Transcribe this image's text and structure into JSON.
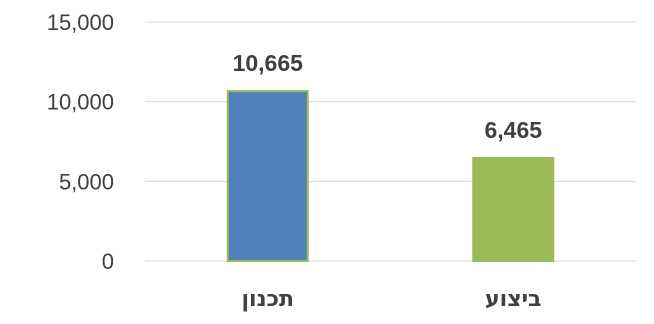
{
  "chart_data": {
    "type": "bar",
    "categories": [
      "תכנון",
      "ביצוע"
    ],
    "values": [
      10665,
      6465
    ],
    "value_labels": [
      "10,665",
      "6,465"
    ],
    "bar_colors": [
      "#4F81BD",
      "#9BBB59"
    ],
    "bar_outline_color": "#9BBB59",
    "yticks": [
      0,
      5000,
      10000,
      15000
    ],
    "ytick_labels": [
      "0",
      "5,000",
      "10,000",
      "15,000"
    ],
    "ylim": [
      0,
      15000
    ],
    "grid": true,
    "title": "",
    "xlabel": "",
    "ylabel": ""
  }
}
